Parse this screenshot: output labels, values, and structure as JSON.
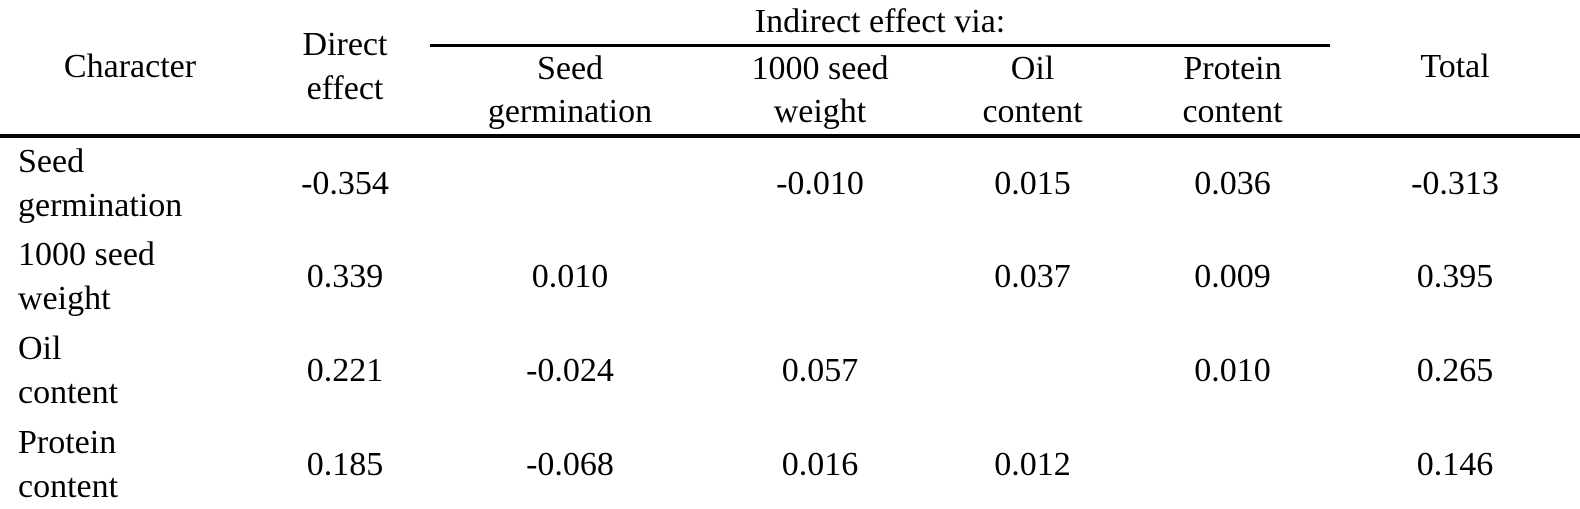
{
  "page": {
    "background": "#ffffff",
    "text_color": "#000000",
    "rule_color": "#000000"
  },
  "table": {
    "headers": {
      "character": "Character",
      "direct_effect": "Direct\neffect",
      "indirect_group": "Indirect effect via:",
      "indirect_sub": [
        "Seed\ngermination",
        "1000 seed\nweight",
        "Oil\ncontent",
        "Protein\ncontent"
      ],
      "total": "Total"
    },
    "rows": [
      {
        "label": "Seed\ngermination",
        "direct": "-0.354",
        "via": [
          "",
          "-0.010",
          "0.015",
          "0.036"
        ],
        "total": "-0.313"
      },
      {
        "label": "1000 seed\nweight",
        "direct": "0.339",
        "via": [
          "0.010",
          "",
          "0.037",
          "0.009"
        ],
        "total": "0.395"
      },
      {
        "label": "Oil\ncontent",
        "direct": "0.221",
        "via": [
          "-0.024",
          "0.057",
          "",
          "0.010"
        ],
        "total": "0.265"
      },
      {
        "label": "Protein\ncontent",
        "direct": "0.185",
        "via": [
          "-0.068",
          "0.016",
          "0.012",
          ""
        ],
        "total": "0.146"
      }
    ]
  }
}
